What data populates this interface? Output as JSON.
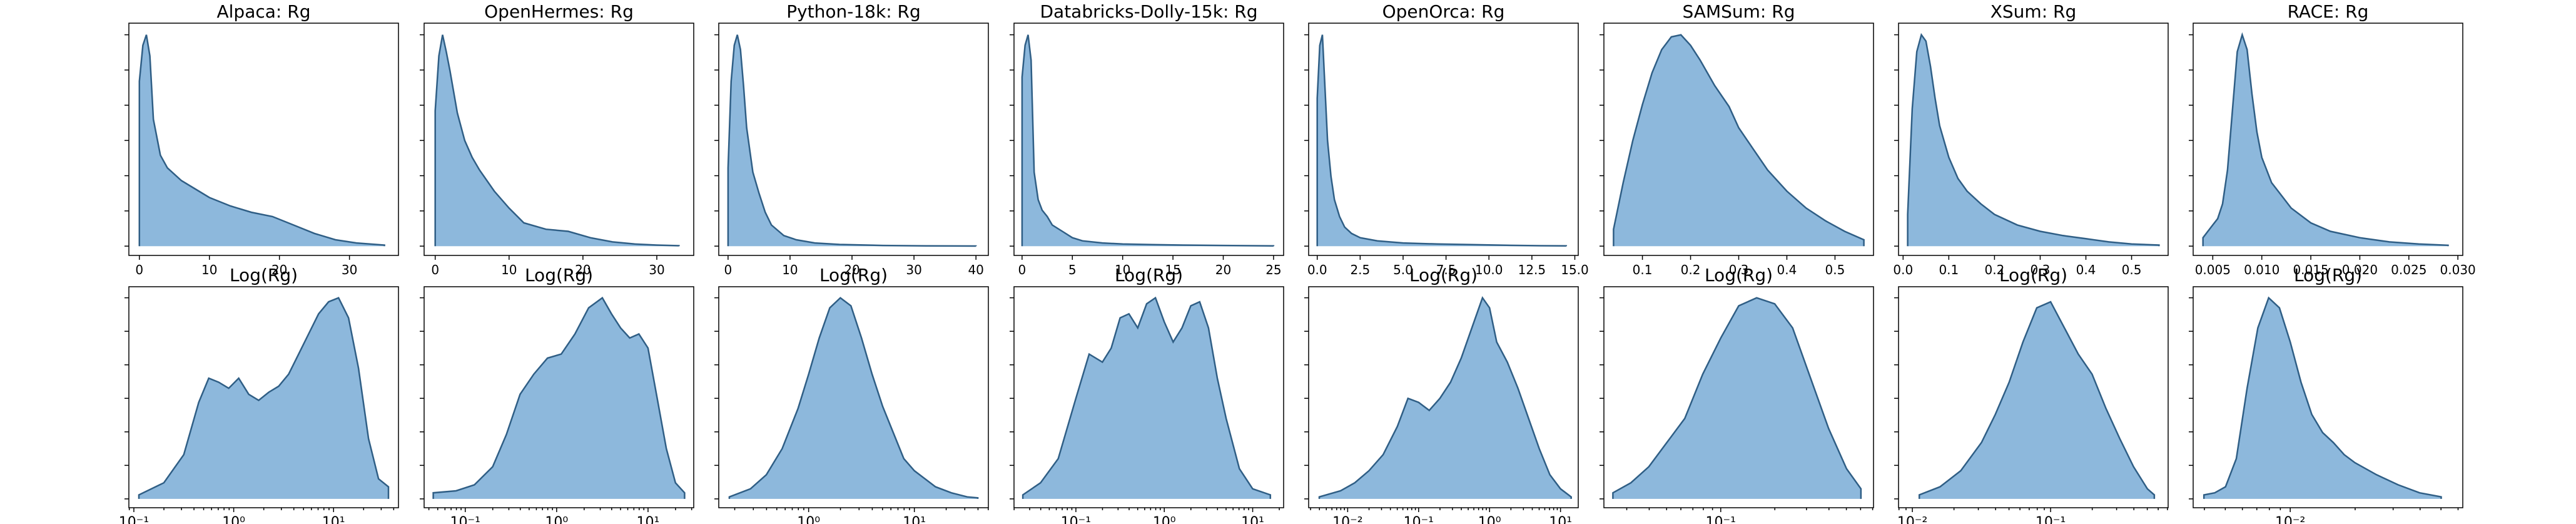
{
  "colors": {
    "fill": "#8db8dc",
    "line": "#2f5e85",
    "axes": "#000000",
    "background": "#ffffff"
  },
  "chart_data": [
    {
      "type": "area",
      "title": "Alpaca: Rg",
      "xscale": "linear",
      "xlim": [
        -1.5,
        37
      ],
      "xticks": [
        0,
        10,
        20,
        30
      ],
      "xtick_labels": [
        "0",
        "10",
        "20",
        "30"
      ],
      "yticks_labels": false,
      "x": [
        0,
        0.5,
        1,
        1.5,
        2,
        3,
        4,
        6,
        8,
        10,
        13,
        16,
        19,
        22,
        25,
        28,
        31,
        35
      ],
      "y": [
        0.78,
        0.95,
        1.0,
        0.9,
        0.6,
        0.43,
        0.37,
        0.31,
        0.27,
        0.23,
        0.19,
        0.16,
        0.14,
        0.1,
        0.06,
        0.03,
        0.015,
        0.005
      ]
    },
    {
      "type": "area",
      "title": "OpenHermes: Rg",
      "xscale": "linear",
      "xlim": [
        -1.5,
        35
      ],
      "xticks": [
        0,
        10,
        20,
        30
      ],
      "xtick_labels": [
        "0",
        "10",
        "20",
        "30"
      ],
      "yticks_labels": false,
      "x": [
        0,
        0.5,
        1,
        1.5,
        2,
        3,
        4,
        5,
        6,
        8,
        10,
        12,
        15,
        18,
        21,
        24,
        27,
        30,
        33
      ],
      "y": [
        0.64,
        0.9,
        1.0,
        0.92,
        0.83,
        0.63,
        0.5,
        0.42,
        0.36,
        0.26,
        0.18,
        0.11,
        0.08,
        0.07,
        0.04,
        0.02,
        0.01,
        0.005,
        0.002
      ]
    },
    {
      "type": "area",
      "title": "Python-18k: Rg",
      "xscale": "linear",
      "xlim": [
        -1.5,
        42
      ],
      "xticks": [
        0,
        10,
        20,
        30,
        40
      ],
      "xtick_labels": [
        "0",
        "10",
        "20",
        "30",
        "40"
      ],
      "yticks_labels": false,
      "x": [
        0,
        0.5,
        1,
        1.5,
        2,
        2.5,
        3,
        4,
        5,
        6,
        7,
        9,
        11,
        14,
        18,
        25,
        32,
        40
      ],
      "y": [
        0.37,
        0.78,
        0.95,
        1.0,
        0.93,
        0.76,
        0.56,
        0.35,
        0.25,
        0.16,
        0.1,
        0.05,
        0.03,
        0.015,
        0.008,
        0.003,
        0.001,
        0.0005
      ]
    },
    {
      "type": "area",
      "title": "Databricks-Dolly-15k: Rg",
      "xscale": "linear",
      "xlim": [
        -0.8,
        26
      ],
      "xticks": [
        0,
        5,
        10,
        15,
        20,
        25
      ],
      "xtick_labels": [
        "0",
        "5",
        "10",
        "15",
        "20",
        "25"
      ],
      "yticks_labels": false,
      "x": [
        0,
        0.3,
        0.6,
        0.9,
        1.2,
        1.6,
        2,
        2.5,
        3,
        4,
        5,
        6,
        8,
        10,
        13,
        16,
        20,
        25
      ],
      "y": [
        0.8,
        0.95,
        1.0,
        0.88,
        0.35,
        0.22,
        0.17,
        0.14,
        0.1,
        0.07,
        0.04,
        0.025,
        0.015,
        0.01,
        0.007,
        0.005,
        0.003,
        0.001
      ]
    },
    {
      "type": "area",
      "title": "OpenOrca: Rg",
      "xscale": "linear",
      "xlim": [
        -0.5,
        15.2
      ],
      "xticks": [
        0.0,
        2.5,
        5.0,
        7.5,
        10.0,
        12.5,
        15.0
      ],
      "xtick_labels": [
        "0.0",
        "2.5",
        "5.0",
        "7.5",
        "10.0",
        "12.5",
        "15.0"
      ],
      "yticks_labels": false,
      "x": [
        0,
        0.15,
        0.3,
        0.45,
        0.6,
        0.8,
        1,
        1.3,
        1.6,
        2,
        2.5,
        3.5,
        5,
        7,
        9,
        11,
        13,
        14.5
      ],
      "y": [
        0.7,
        0.95,
        1.0,
        0.75,
        0.5,
        0.33,
        0.22,
        0.14,
        0.09,
        0.06,
        0.04,
        0.025,
        0.015,
        0.01,
        0.007,
        0.004,
        0.002,
        0.001
      ]
    },
    {
      "type": "area",
      "title": "SAMSum: Rg",
      "xscale": "linear",
      "xlim": [
        0.02,
        0.58
      ],
      "xticks": [
        0.1,
        0.2,
        0.3,
        0.4,
        0.5
      ],
      "xtick_labels": [
        "0.1",
        "0.2",
        "0.3",
        "0.4",
        "0.5"
      ],
      "yticks_labels": false,
      "x": [
        0.04,
        0.06,
        0.08,
        0.1,
        0.12,
        0.14,
        0.16,
        0.18,
        0.2,
        0.22,
        0.25,
        0.28,
        0.3,
        0.33,
        0.36,
        0.4,
        0.44,
        0.48,
        0.52,
        0.56
      ],
      "y": [
        0.08,
        0.3,
        0.5,
        0.67,
        0.82,
        0.93,
        0.99,
        1.0,
        0.95,
        0.88,
        0.76,
        0.66,
        0.56,
        0.46,
        0.36,
        0.26,
        0.18,
        0.12,
        0.07,
        0.03
      ]
    },
    {
      "type": "area",
      "title": "XSum: Rg",
      "xscale": "linear",
      "xlim": [
        -0.01,
        0.58
      ],
      "xticks": [
        0.0,
        0.1,
        0.2,
        0.3,
        0.4,
        0.5
      ],
      "xtick_labels": [
        "0.0",
        "0.1",
        "0.2",
        "0.3",
        "0.4",
        "0.5"
      ],
      "yticks_labels": false,
      "x": [
        0.01,
        0.02,
        0.03,
        0.04,
        0.05,
        0.06,
        0.07,
        0.08,
        0.1,
        0.12,
        0.14,
        0.17,
        0.2,
        0.25,
        0.3,
        0.35,
        0.4,
        0.45,
        0.5,
        0.56
      ],
      "y": [
        0.15,
        0.65,
        0.92,
        1.0,
        0.97,
        0.85,
        0.7,
        0.57,
        0.42,
        0.32,
        0.26,
        0.2,
        0.15,
        0.1,
        0.07,
        0.05,
        0.035,
        0.02,
        0.01,
        0.005
      ]
    },
    {
      "type": "area",
      "title": "RACE: Rg",
      "xscale": "linear",
      "xlim": [
        0.003,
        0.0305
      ],
      "xticks": [
        0.005,
        0.01,
        0.015,
        0.02,
        0.025,
        0.03
      ],
      "xtick_labels": [
        "0.005",
        "0.010",
        "0.015",
        "0.020",
        "0.025",
        "0.030"
      ],
      "yticks_labels": false,
      "x": [
        0.004,
        0.0045,
        0.005,
        0.0055,
        0.006,
        0.0065,
        0.007,
        0.0075,
        0.008,
        0.0085,
        0.009,
        0.0095,
        0.01,
        0.011,
        0.012,
        0.013,
        0.015,
        0.017,
        0.02,
        0.023,
        0.026,
        0.029
      ],
      "y": [
        0.04,
        0.07,
        0.1,
        0.13,
        0.2,
        0.36,
        0.64,
        0.92,
        1.0,
        0.93,
        0.72,
        0.54,
        0.42,
        0.3,
        0.24,
        0.18,
        0.11,
        0.07,
        0.04,
        0.02,
        0.01,
        0.004
      ]
    },
    {
      "type": "area",
      "title": "Log(Rg)",
      "xscale": "log",
      "xlim_log10": [
        -1.05,
        1.65
      ],
      "xticks_log10": [
        -1,
        0,
        1
      ],
      "xtick_labels": [
        "10⁻¹",
        "10⁰",
        "10¹"
      ],
      "yticks_labels": false,
      "x_log10": [
        -0.95,
        -0.7,
        -0.5,
        -0.35,
        -0.25,
        -0.15,
        -0.05,
        0.05,
        0.15,
        0.25,
        0.35,
        0.45,
        0.55,
        0.65,
        0.75,
        0.85,
        0.95,
        1.05,
        1.15,
        1.25,
        1.35,
        1.45,
        1.55
      ],
      "y": [
        0.02,
        0.08,
        0.22,
        0.48,
        0.6,
        0.58,
        0.55,
        0.6,
        0.52,
        0.49,
        0.53,
        0.56,
        0.62,
        0.72,
        0.82,
        0.92,
        0.98,
        1.0,
        0.9,
        0.65,
        0.3,
        0.1,
        0.06
      ]
    },
    {
      "type": "area",
      "title": "Log(Rg)",
      "xscale": "log",
      "xlim_log10": [
        -1.45,
        1.5
      ],
      "xticks_log10": [
        -1,
        0,
        1
      ],
      "xtick_labels": [
        "10⁻¹",
        "10⁰",
        "10¹"
      ],
      "yticks_labels": false,
      "x_log10": [
        -1.35,
        -1.1,
        -0.9,
        -0.7,
        -0.55,
        -0.4,
        -0.25,
        -0.1,
        0.05,
        0.2,
        0.35,
        0.5,
        0.6,
        0.7,
        0.8,
        0.9,
        1.0,
        1.1,
        1.2,
        1.3,
        1.4
      ],
      "y": [
        0.03,
        0.04,
        0.07,
        0.16,
        0.32,
        0.52,
        0.62,
        0.7,
        0.72,
        0.82,
        0.95,
        1.0,
        0.92,
        0.85,
        0.8,
        0.82,
        0.75,
        0.5,
        0.25,
        0.08,
        0.03
      ]
    },
    {
      "type": "area",
      "title": "Log(Rg)",
      "xscale": "log",
      "xlim_log10": [
        -0.85,
        1.7
      ],
      "xticks_log10": [
        0,
        1
      ],
      "xtick_labels": [
        "10⁰",
        "10¹"
      ],
      "yticks_labels": false,
      "x_log10": [
        -0.75,
        -0.55,
        -0.4,
        -0.25,
        -0.1,
        0.0,
        0.1,
        0.2,
        0.3,
        0.4,
        0.5,
        0.6,
        0.7,
        0.8,
        0.9,
        1.0,
        1.1,
        1.2,
        1.35,
        1.5,
        1.6
      ],
      "y": [
        0.01,
        0.05,
        0.12,
        0.25,
        0.45,
        0.62,
        0.8,
        0.95,
        1.0,
        0.96,
        0.8,
        0.62,
        0.46,
        0.33,
        0.2,
        0.14,
        0.1,
        0.06,
        0.03,
        0.01,
        0.005
      ]
    },
    {
      "type": "area",
      "title": "Log(Rg)",
      "xscale": "log",
      "xlim_log10": [
        -1.7,
        1.35
      ],
      "xticks_log10": [
        -1,
        0,
        1
      ],
      "xtick_labels": [
        "10⁻¹",
        "10⁰",
        "10¹"
      ],
      "yticks_labels": false,
      "x_log10": [
        -1.6,
        -1.4,
        -1.2,
        -1.0,
        -0.85,
        -0.7,
        -0.6,
        -0.5,
        -0.4,
        -0.3,
        -0.2,
        -0.1,
        0.0,
        0.1,
        0.2,
        0.3,
        0.4,
        0.5,
        0.6,
        0.7,
        0.85,
        1.0,
        1.2
      ],
      "y": [
        0.02,
        0.08,
        0.2,
        0.5,
        0.72,
        0.68,
        0.75,
        0.9,
        0.92,
        0.85,
        0.97,
        1.0,
        0.88,
        0.78,
        0.85,
        0.96,
        0.98,
        0.85,
        0.6,
        0.4,
        0.15,
        0.05,
        0.02
      ]
    },
    {
      "type": "area",
      "title": "Log(Rg)",
      "xscale": "log",
      "xlim_log10": [
        -2.55,
        1.25
      ],
      "xticks_log10": [
        -2,
        -1,
        0,
        1
      ],
      "xtick_labels": [
        "10⁻²",
        "10⁻¹",
        "10⁰",
        "10¹"
      ],
      "yticks_labels": false,
      "x_log10": [
        -2.4,
        -2.1,
        -1.9,
        -1.7,
        -1.5,
        -1.3,
        -1.15,
        -1.0,
        -0.85,
        -0.7,
        -0.55,
        -0.4,
        -0.25,
        -0.1,
        0.0,
        0.1,
        0.25,
        0.4,
        0.55,
        0.7,
        0.85,
        1.0,
        1.15
      ],
      "y": [
        0.01,
        0.04,
        0.08,
        0.14,
        0.22,
        0.36,
        0.5,
        0.48,
        0.44,
        0.5,
        0.58,
        0.7,
        0.85,
        1.0,
        0.95,
        0.78,
        0.68,
        0.55,
        0.4,
        0.25,
        0.12,
        0.05,
        0.01
      ]
    },
    {
      "type": "area",
      "title": "Log(Rg)",
      "xscale": "log",
      "xlim_log10": [
        -1.65,
        -0.15
      ],
      "xticks_log10": [
        -1
      ],
      "xtick_labels": [
        "10⁻¹"
      ],
      "yticks_labels": false,
      "x_log10": [
        -1.6,
        -1.5,
        -1.4,
        -1.3,
        -1.2,
        -1.1,
        -1.0,
        -0.9,
        -0.8,
        -0.7,
        -0.6,
        -0.5,
        -0.4,
        -0.3,
        -0.22
      ],
      "y": [
        0.03,
        0.08,
        0.16,
        0.28,
        0.4,
        0.62,
        0.8,
        0.96,
        1.0,
        0.97,
        0.85,
        0.6,
        0.35,
        0.15,
        0.05
      ]
    },
    {
      "type": "area",
      "title": "Log(Rg)",
      "xscale": "log",
      "xlim_log10": [
        -2.1,
        -0.15
      ],
      "xticks_log10": [
        -2,
        -1
      ],
      "xtick_labels": [
        "10⁻²",
        "10⁻¹"
      ],
      "yticks_labels": false,
      "x_log10": [
        -1.95,
        -1.8,
        -1.65,
        -1.5,
        -1.4,
        -1.3,
        -1.2,
        -1.1,
        -1.0,
        -0.9,
        -0.8,
        -0.7,
        -0.6,
        -0.5,
        -0.4,
        -0.3,
        -0.25
      ],
      "y": [
        0.02,
        0.06,
        0.14,
        0.28,
        0.42,
        0.58,
        0.78,
        0.95,
        0.98,
        0.85,
        0.72,
        0.62,
        0.45,
        0.3,
        0.16,
        0.05,
        0.02
      ]
    },
    {
      "type": "area",
      "title": "Log(Rg)",
      "xscale": "log",
      "xlim_log10": [
        -2.45,
        -1.2
      ],
      "xticks_log10": [
        -2
      ],
      "xtick_labels": [
        "10⁻²"
      ],
      "yticks_labels": false,
      "x_log10": [
        -2.4,
        -2.35,
        -2.3,
        -2.25,
        -2.2,
        -2.15,
        -2.1,
        -2.05,
        -2.0,
        -1.95,
        -1.9,
        -1.85,
        -1.8,
        -1.75,
        -1.7,
        -1.6,
        -1.5,
        -1.4,
        -1.3
      ],
      "y": [
        0.02,
        0.03,
        0.06,
        0.2,
        0.55,
        0.85,
        1.0,
        0.95,
        0.78,
        0.58,
        0.42,
        0.33,
        0.28,
        0.22,
        0.18,
        0.12,
        0.07,
        0.03,
        0.01
      ]
    }
  ]
}
